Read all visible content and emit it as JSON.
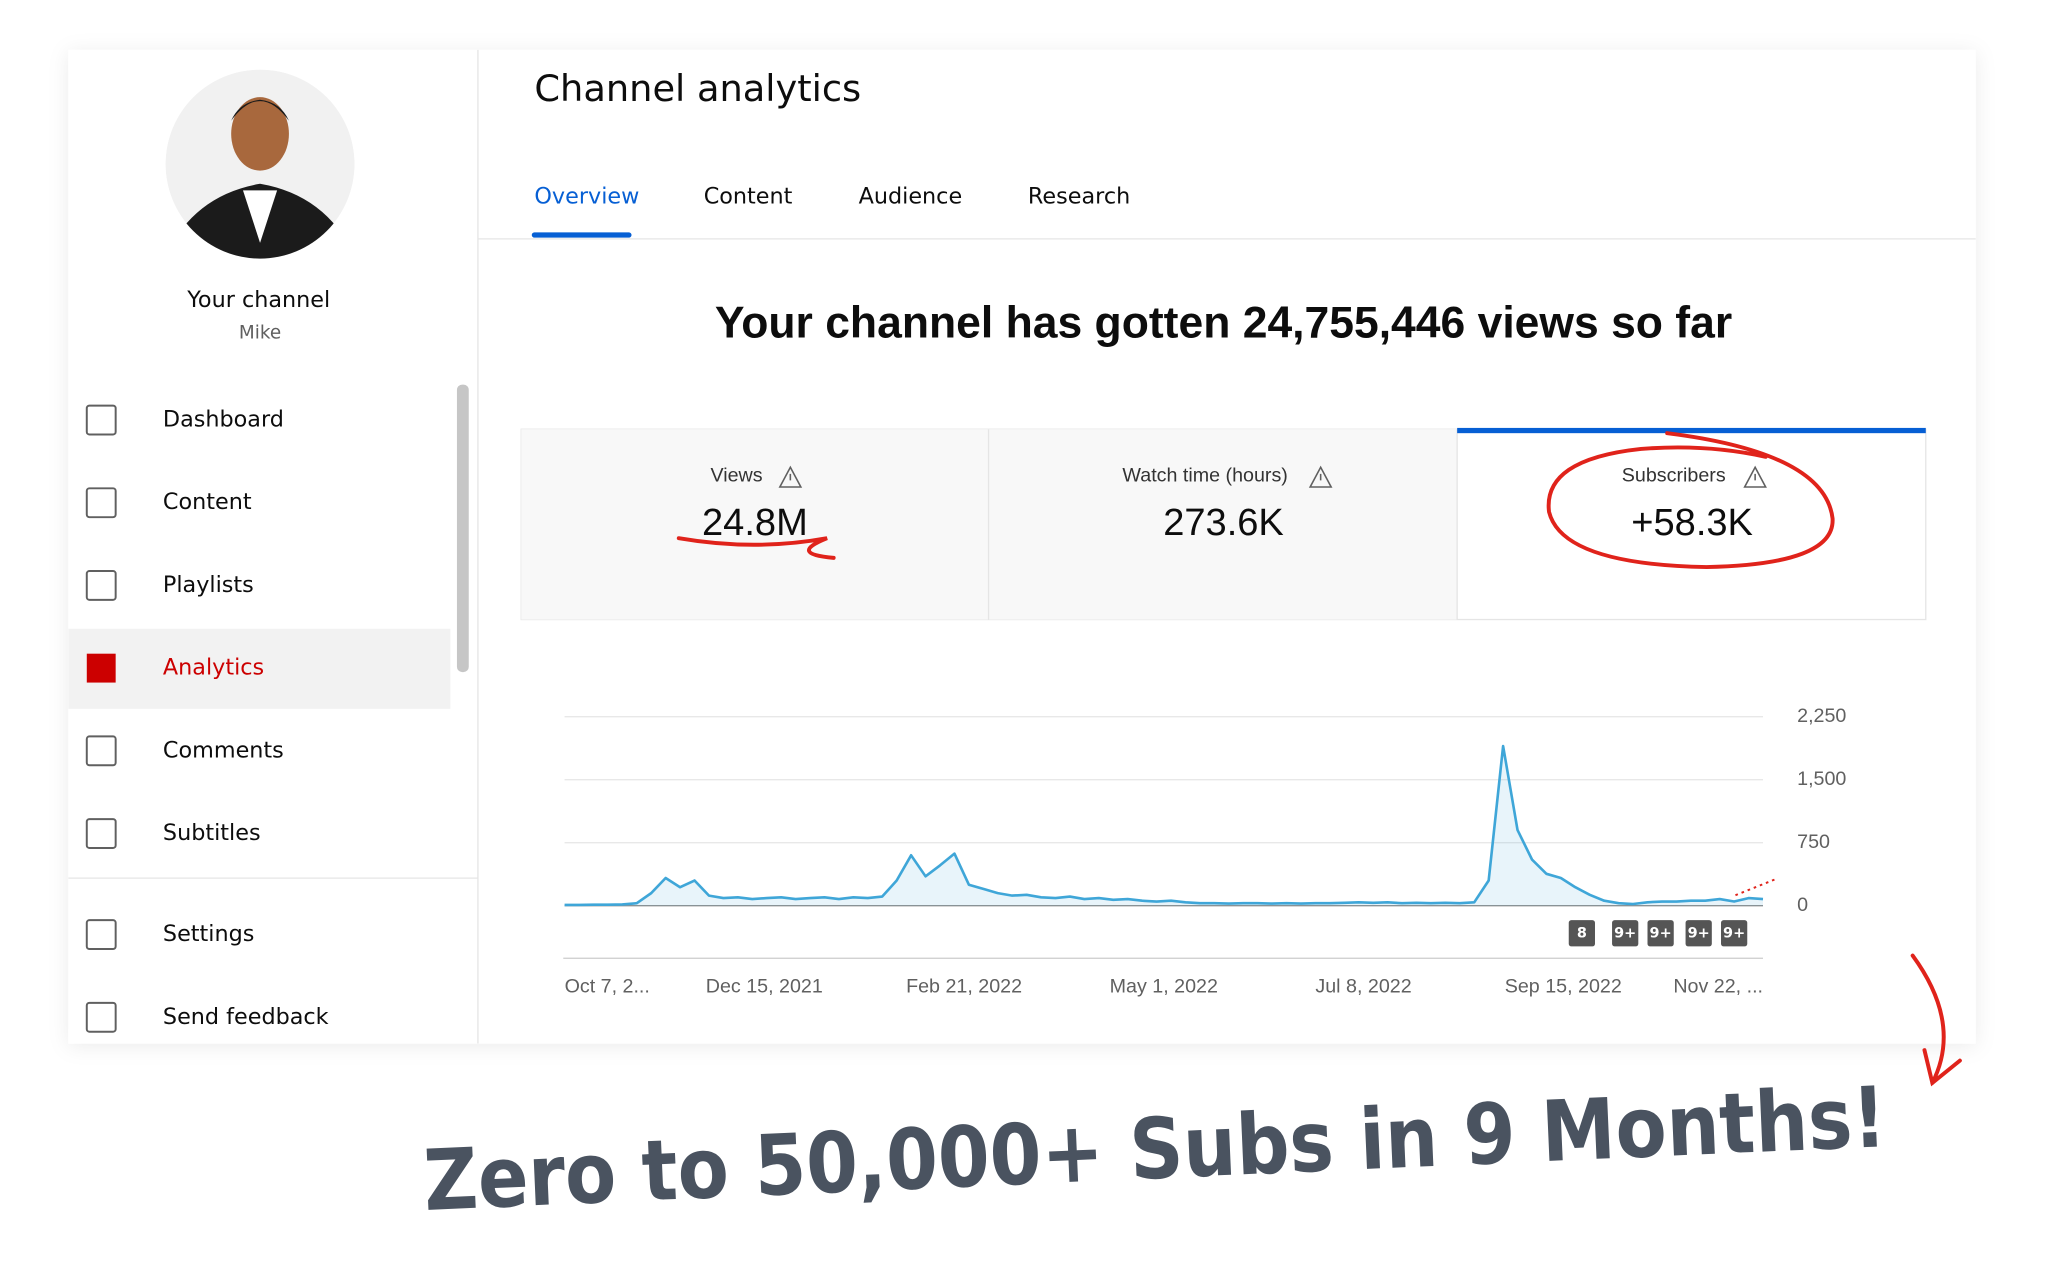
{
  "sidebar": {
    "channel_label": "Your channel",
    "channel_name": "Mike",
    "nav": [
      "Dashboard",
      "Content",
      "Playlists",
      "Analytics",
      "Comments",
      "Subtitles"
    ],
    "footer_nav": [
      "Settings",
      "Send feedback"
    ]
  },
  "header": {
    "title": "Channel analytics",
    "tabs": [
      "Overview",
      "Content",
      "Audience",
      "Research"
    ]
  },
  "headline": "Your channel has gotten 24,755,446 views so far",
  "metrics": [
    {
      "label": "Views",
      "value": "24.8M"
    },
    {
      "label": "Watch time (hours)",
      "value": "273.6K"
    },
    {
      "label": "Subscribers",
      "value": "+58.3K"
    }
  ],
  "chart_data": {
    "type": "line",
    "color": "#3fa6d8",
    "xtick_labels": [
      "Oct 7, 2...",
      "Dec 15, 2021",
      "Feb 21, 2022",
      "May 1, 2022",
      "Jul 8, 2022",
      "Sep 15, 2022",
      "Nov 22, ..."
    ],
    "values": [
      10,
      10,
      12,
      12,
      15,
      30,
      150,
      330,
      220,
      300,
      120,
      90,
      100,
      80,
      90,
      100,
      80,
      90,
      100,
      80,
      100,
      90,
      110,
      300,
      600,
      350,
      480,
      620,
      250,
      200,
      150,
      120,
      130,
      100,
      90,
      110,
      80,
      90,
      70,
      80,
      60,
      50,
      60,
      40,
      30,
      30,
      25,
      30,
      30,
      25,
      30,
      25,
      30,
      30,
      35,
      40,
      35,
      40,
      30,
      35,
      30,
      35,
      30,
      40,
      300,
      1900,
      900,
      550,
      380,
      330,
      220,
      130,
      60,
      30,
      20,
      40,
      50,
      50,
      60,
      60,
      80,
      50,
      90,
      80
    ],
    "ylim": [
      0,
      2250
    ],
    "yticks": [
      0,
      750,
      {
        "value": 1500,
        "label": "1,500"
      },
      {
        "value": 2250,
        "label": "2,250"
      }
    ],
    "grid": true,
    "badges": [
      "8",
      "9+",
      "9+",
      "9+",
      "9+"
    ]
  },
  "caption": "Zero to 50,000+ Subs in 9 Months!"
}
